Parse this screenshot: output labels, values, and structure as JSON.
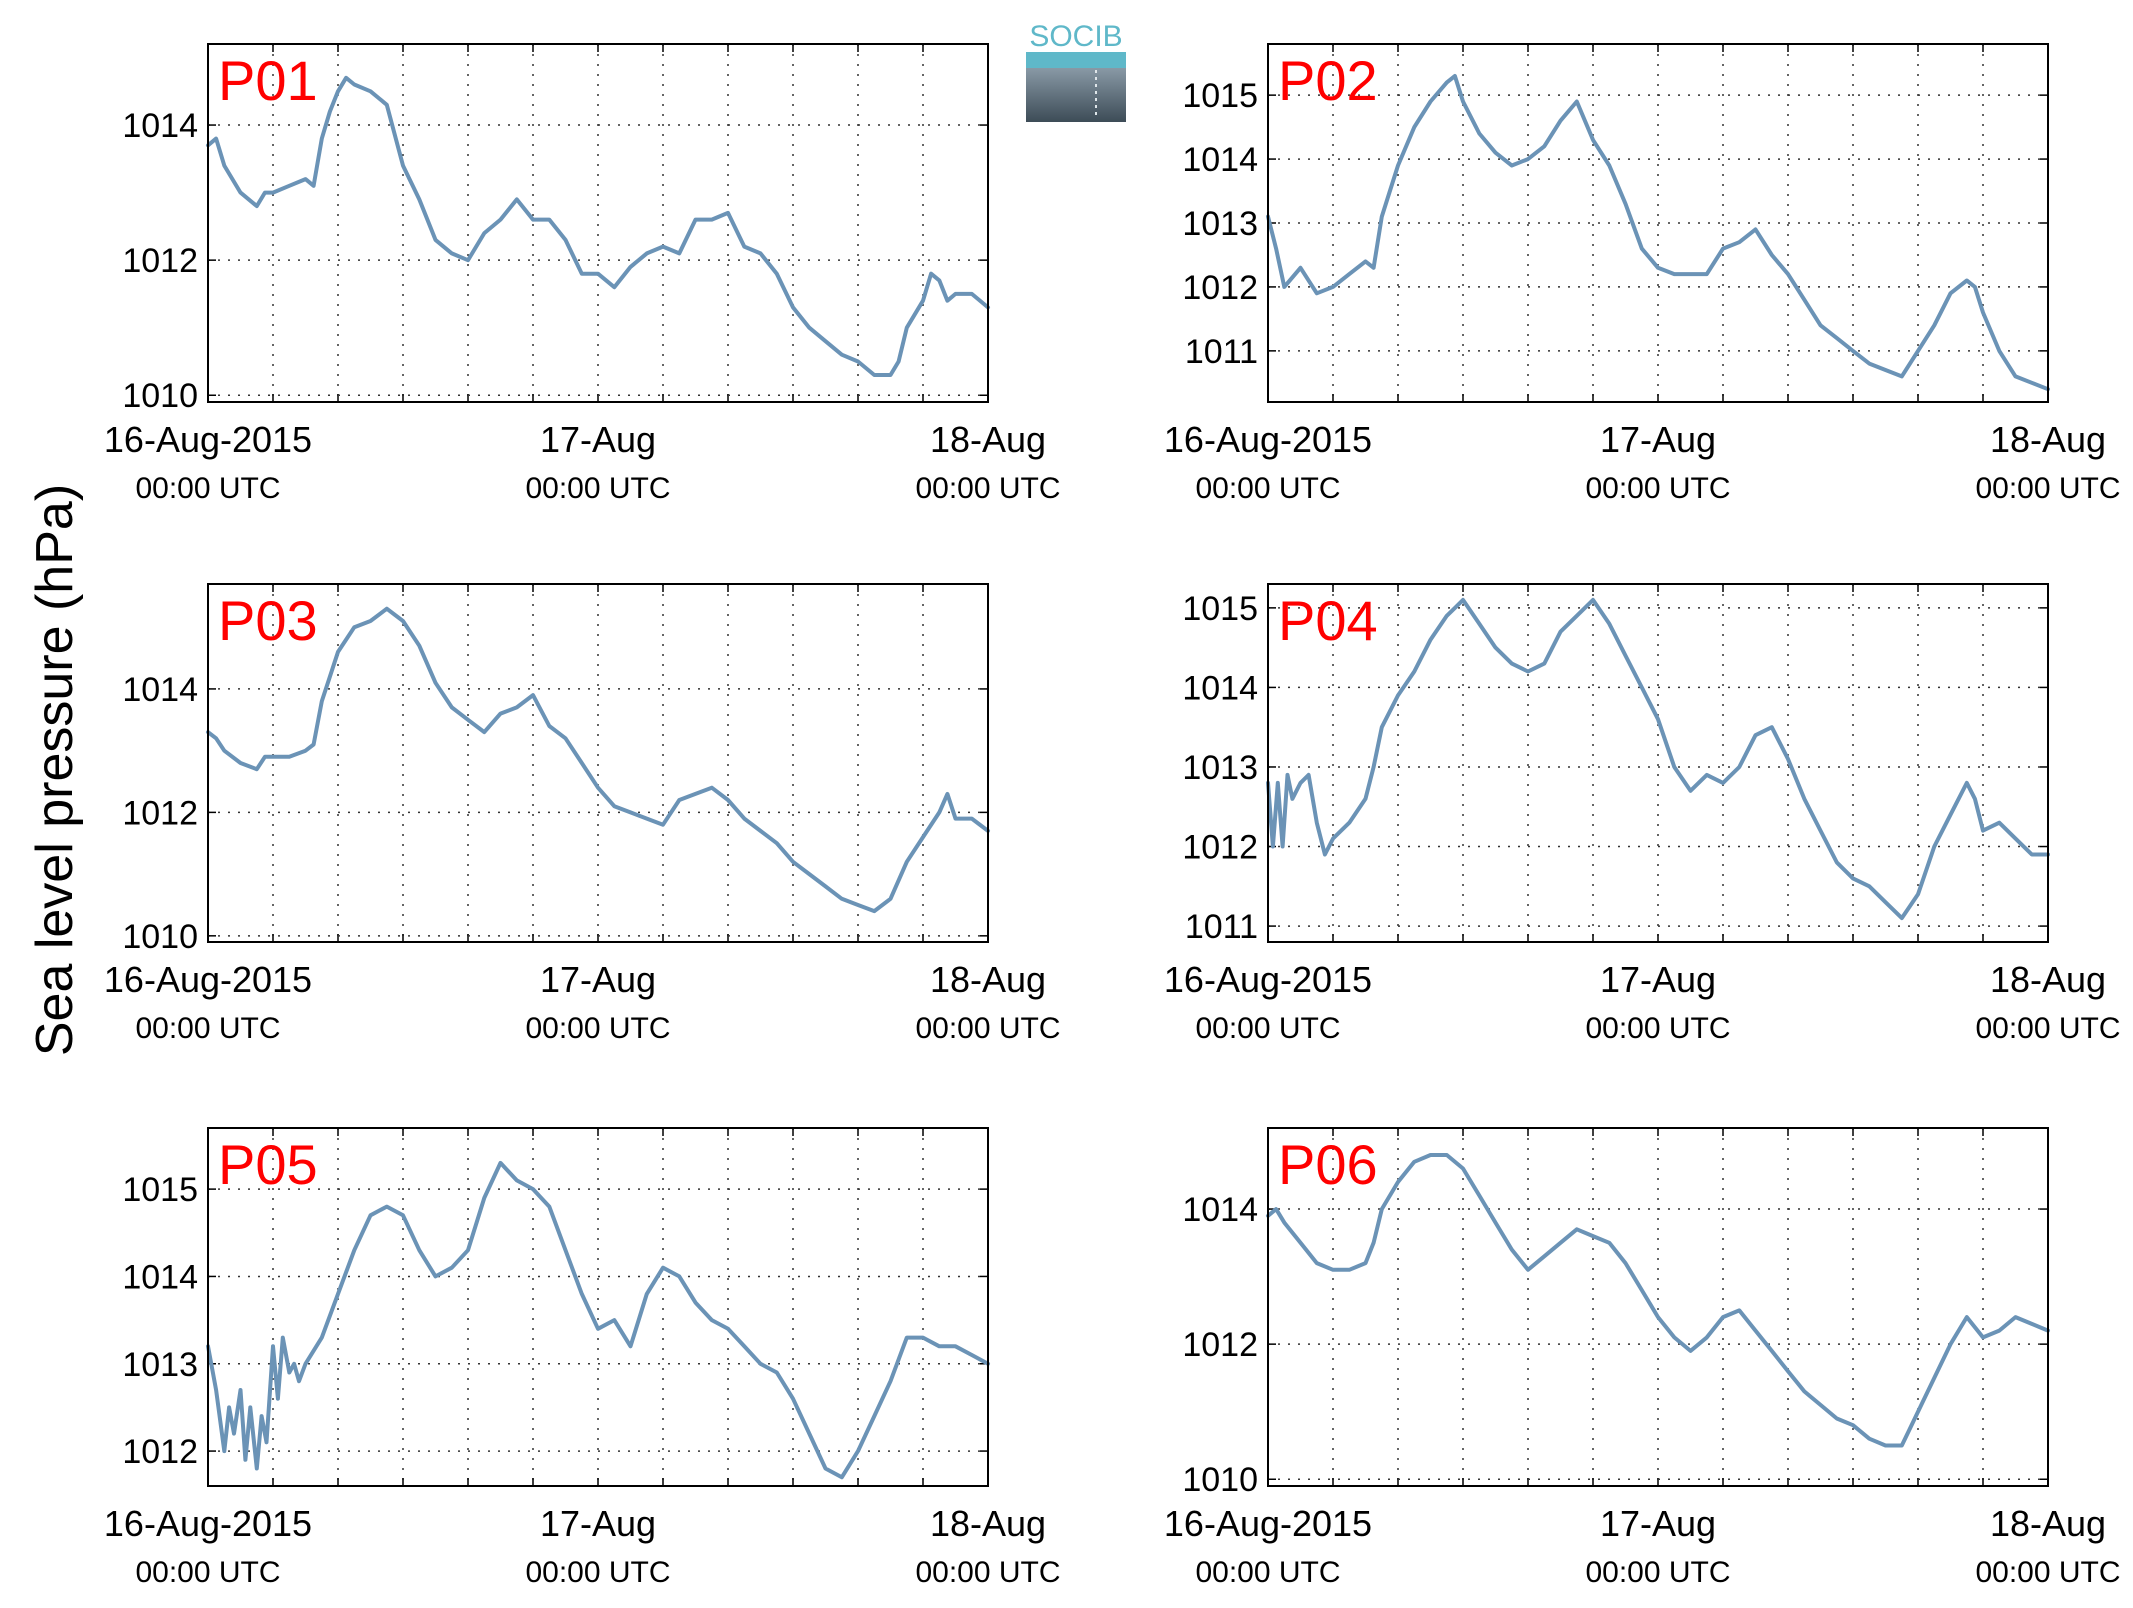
{
  "figure": {
    "ylabel": "Sea level pressure (hPa)",
    "logo_text": "SOCIB",
    "line_color": "#6b93b6",
    "panel_label_color": "#ff0000"
  },
  "chart_data": [
    {
      "type": "line",
      "label": "P01",
      "ylim": [
        1009.9,
        1015.2
      ],
      "yticks": [
        1010,
        1012,
        1014
      ],
      "x_unit": "hours since 16-Aug-2015 00:00 UTC",
      "xlim": [
        0,
        48
      ],
      "xticks": [
        {
          "value": 0,
          "date": "16-Aug-2015",
          "time": "00:00 UTC"
        },
        {
          "value": 24,
          "date": "17-Aug",
          "time": "00:00 UTC"
        },
        {
          "value": 48,
          "date": "18-Aug",
          "time": "00:00 UTC"
        }
      ],
      "x": [
        0,
        0.5,
        1,
        2,
        3,
        3.5,
        4,
        5,
        6,
        6.5,
        7,
        7.5,
        8,
        8.5,
        9,
        10,
        11,
        12,
        13,
        14,
        15,
        16,
        17,
        18,
        19,
        20,
        21,
        22,
        23,
        24,
        25,
        26,
        27,
        28,
        29,
        30,
        31,
        32,
        33,
        34,
        35,
        36,
        37,
        38,
        39,
        40,
        41,
        42,
        42.5,
        43,
        44,
        44.5,
        45,
        45.5,
        46,
        47,
        48
      ],
      "y": [
        1013.7,
        1013.8,
        1013.4,
        1013.0,
        1012.8,
        1013.0,
        1013.0,
        1013.1,
        1013.2,
        1013.1,
        1013.8,
        1014.2,
        1014.5,
        1014.7,
        1014.6,
        1014.5,
        1014.3,
        1013.4,
        1012.9,
        1012.3,
        1012.1,
        1012.0,
        1012.4,
        1012.6,
        1012.9,
        1012.6,
        1012.6,
        1012.3,
        1011.8,
        1011.8,
        1011.6,
        1011.9,
        1012.1,
        1012.2,
        1012.1,
        1012.6,
        1012.6,
        1012.7,
        1012.2,
        1012.1,
        1011.8,
        1011.3,
        1011.0,
        1010.8,
        1010.6,
        1010.5,
        1010.3,
        1010.3,
        1010.5,
        1011.0,
        1011.4,
        1011.8,
        1011.7,
        1011.4,
        1011.5,
        1011.5,
        1011.3
      ]
    },
    {
      "type": "line",
      "label": "P02",
      "ylim": [
        1010.2,
        1015.8
      ],
      "yticks": [
        1011,
        1012,
        1013,
        1014,
        1015
      ],
      "x_unit": "hours since 16-Aug-2015 00:00 UTC",
      "xlim": [
        0,
        48
      ],
      "xticks": [
        {
          "value": 0,
          "date": "16-Aug-2015",
          "time": "00:00 UTC"
        },
        {
          "value": 24,
          "date": "17-Aug",
          "time": "00:00 UTC"
        },
        {
          "value": 48,
          "date": "18-Aug",
          "time": "00:00 UTC"
        }
      ],
      "x": [
        0,
        0.5,
        1,
        2,
        3,
        4,
        5,
        6,
        6.5,
        7,
        7.5,
        8,
        9,
        10,
        11,
        11.5,
        12,
        13,
        14,
        15,
        16,
        17,
        18,
        19,
        20,
        21,
        22,
        23,
        24,
        25,
        26,
        27,
        28,
        29,
        30,
        31,
        32,
        33,
        34,
        35,
        36,
        37,
        38,
        39,
        40,
        41,
        42,
        43,
        43.5,
        44,
        45,
        46,
        47,
        48
      ],
      "y": [
        1013.1,
        1012.6,
        1012.0,
        1012.3,
        1011.9,
        1012.0,
        1012.2,
        1012.4,
        1012.3,
        1013.1,
        1013.5,
        1013.9,
        1014.5,
        1014.9,
        1015.2,
        1015.3,
        1014.9,
        1014.4,
        1014.1,
        1013.9,
        1014.0,
        1014.2,
        1014.6,
        1014.9,
        1014.3,
        1013.9,
        1013.3,
        1012.6,
        1012.3,
        1012.2,
        1012.2,
        1012.2,
        1012.6,
        1012.7,
        1012.9,
        1012.5,
        1012.2,
        1011.8,
        1011.4,
        1011.2,
        1011.0,
        1010.8,
        1010.7,
        1010.6,
        1011.0,
        1011.4,
        1011.9,
        1012.1,
        1012.0,
        1011.6,
        1011.0,
        1010.6,
        1010.5,
        1010.4
      ]
    },
    {
      "type": "line",
      "label": "P03",
      "ylim": [
        1009.9,
        1015.7
      ],
      "yticks": [
        1010,
        1012,
        1014
      ],
      "x_unit": "hours since 16-Aug-2015 00:00 UTC",
      "xlim": [
        0,
        48
      ],
      "xticks": [
        {
          "value": 0,
          "date": "16-Aug-2015",
          "time": "00:00 UTC"
        },
        {
          "value": 24,
          "date": "17-Aug",
          "time": "00:00 UTC"
        },
        {
          "value": 48,
          "date": "18-Aug",
          "time": "00:00 UTC"
        }
      ],
      "x": [
        0,
        0.5,
        1,
        2,
        3,
        3.5,
        4,
        5,
        6,
        6.5,
        7,
        7.5,
        8,
        9,
        10,
        11,
        11.5,
        12,
        13,
        14,
        15,
        16,
        17,
        18,
        19,
        20,
        21,
        22,
        23,
        24,
        25,
        26,
        27,
        28,
        29,
        30,
        31,
        32,
        33,
        34,
        35,
        36,
        37,
        38,
        39,
        40,
        41,
        42,
        43,
        44,
        45,
        45.5,
        46,
        47,
        48
      ],
      "y": [
        1013.3,
        1013.2,
        1013.0,
        1012.8,
        1012.7,
        1012.9,
        1012.9,
        1012.9,
        1013.0,
        1013.1,
        1013.8,
        1014.2,
        1014.6,
        1015.0,
        1015.1,
        1015.3,
        1015.2,
        1015.1,
        1014.7,
        1014.1,
        1013.7,
        1013.5,
        1013.3,
        1013.6,
        1013.7,
        1013.9,
        1013.4,
        1013.2,
        1012.8,
        1012.4,
        1012.1,
        1012.0,
        1011.9,
        1011.8,
        1012.2,
        1012.3,
        1012.4,
        1012.2,
        1011.9,
        1011.7,
        1011.5,
        1011.2,
        1011.0,
        1010.8,
        1010.6,
        1010.5,
        1010.4,
        1010.6,
        1011.2,
        1011.6,
        1012.0,
        1012.3,
        1011.9,
        1011.9,
        1011.7
      ]
    },
    {
      "type": "line",
      "label": "P04",
      "ylim": [
        1010.8,
        1015.3
      ],
      "yticks": [
        1011,
        1012,
        1013,
        1014,
        1015
      ],
      "x_unit": "hours since 16-Aug-2015 00:00 UTC",
      "xlim": [
        0,
        48
      ],
      "xticks": [
        {
          "value": 0,
          "date": "16-Aug-2015",
          "time": "00:00 UTC"
        },
        {
          "value": 24,
          "date": "17-Aug",
          "time": "00:00 UTC"
        },
        {
          "value": 48,
          "date": "18-Aug",
          "time": "00:00 UTC"
        }
      ],
      "x": [
        0,
        0.3,
        0.6,
        0.9,
        1.2,
        1.5,
        2,
        2.5,
        3,
        3.5,
        4,
        5,
        6,
        6.5,
        7,
        8,
        9,
        10,
        11,
        11.5,
        12,
        13,
        14,
        15,
        16,
        17,
        18,
        19,
        20,
        21,
        22,
        23,
        24,
        25,
        26,
        27,
        28,
        29,
        30,
        31,
        32,
        33,
        34,
        35,
        36,
        37,
        38,
        39,
        40,
        41,
        42,
        43,
        43.5,
        44,
        45,
        46,
        47,
        48
      ],
      "y": [
        1012.8,
        1012.0,
        1012.8,
        1012.0,
        1012.9,
        1012.6,
        1012.8,
        1012.9,
        1012.3,
        1011.9,
        1012.1,
        1012.3,
        1012.6,
        1013.0,
        1013.5,
        1013.9,
        1014.2,
        1014.6,
        1014.9,
        1015.0,
        1015.1,
        1014.8,
        1014.5,
        1014.3,
        1014.2,
        1014.3,
        1014.7,
        1014.9,
        1015.1,
        1014.8,
        1014.4,
        1014.0,
        1013.6,
        1013.0,
        1012.7,
        1012.9,
        1012.8,
        1013.0,
        1013.4,
        1013.5,
        1013.1,
        1012.6,
        1012.2,
        1011.8,
        1011.6,
        1011.5,
        1011.3,
        1011.1,
        1011.4,
        1012.0,
        1012.4,
        1012.8,
        1012.6,
        1012.2,
        1012.3,
        1012.1,
        1011.9,
        1011.9
      ]
    },
    {
      "type": "line",
      "label": "P05",
      "ylim": [
        1011.6,
        1015.7
      ],
      "yticks": [
        1012,
        1013,
        1014,
        1015
      ],
      "x_unit": "hours since 16-Aug-2015 00:00 UTC",
      "xlim": [
        0,
        48
      ],
      "xticks": [
        {
          "value": 0,
          "date": "16-Aug-2015",
          "time": "00:00 UTC"
        },
        {
          "value": 24,
          "date": "17-Aug",
          "time": "00:00 UTC"
        },
        {
          "value": 48,
          "date": "18-Aug",
          "time": "00:00 UTC"
        }
      ],
      "x": [
        0,
        0.5,
        1,
        1.3,
        1.6,
        2,
        2.3,
        2.6,
        3,
        3.3,
        3.6,
        4,
        4.3,
        4.6,
        5,
        5.3,
        5.6,
        6,
        7,
        8,
        9,
        10,
        11,
        12,
        13,
        14,
        15,
        16,
        17,
        18,
        19,
        20,
        21,
        22,
        23,
        24,
        25,
        26,
        27,
        28,
        29,
        30,
        31,
        32,
        33,
        34,
        35,
        36,
        37,
        38,
        39,
        40,
        41,
        42,
        43,
        44,
        45,
        46,
        47,
        48
      ],
      "y": [
        1013.2,
        1012.7,
        1012.0,
        1012.5,
        1012.2,
        1012.7,
        1011.9,
        1012.5,
        1011.8,
        1012.4,
        1012.1,
        1013.2,
        1012.6,
        1013.3,
        1012.9,
        1013.0,
        1012.8,
        1013.0,
        1013.3,
        1013.8,
        1014.3,
        1014.7,
        1014.8,
        1014.7,
        1014.3,
        1014.0,
        1014.1,
        1014.3,
        1014.9,
        1015.3,
        1015.1,
        1015.0,
        1014.8,
        1014.3,
        1013.8,
        1013.4,
        1013.5,
        1013.2,
        1013.8,
        1014.1,
        1014.0,
        1013.7,
        1013.5,
        1013.4,
        1013.2,
        1013.0,
        1012.9,
        1012.6,
        1012.2,
        1011.8,
        1011.7,
        1012.0,
        1012.4,
        1012.8,
        1013.3,
        1013.3,
        1013.2,
        1013.2,
        1013.1,
        1013.0
      ]
    },
    {
      "type": "line",
      "label": "P06",
      "ylim": [
        1009.9,
        1015.2
      ],
      "yticks": [
        1010,
        1012,
        1014
      ],
      "x_unit": "hours since 16-Aug-2015 00:00 UTC",
      "xlim": [
        0,
        48
      ],
      "xticks": [
        {
          "value": 0,
          "date": "16-Aug-2015",
          "time": "00:00 UTC"
        },
        {
          "value": 24,
          "date": "17-Aug",
          "time": "00:00 UTC"
        },
        {
          "value": 48,
          "date": "18-Aug",
          "time": "00:00 UTC"
        }
      ],
      "x": [
        0,
        0.5,
        1,
        2,
        3,
        4,
        5,
        6,
        6.5,
        7,
        8,
        9,
        10,
        11,
        12,
        13,
        14,
        15,
        16,
        17,
        18,
        19,
        20,
        21,
        22,
        23,
        24,
        25,
        26,
        27,
        28,
        29,
        30,
        31,
        32,
        33,
        34,
        35,
        36,
        37,
        38,
        39,
        40,
        41,
        42,
        43,
        44,
        45,
        46,
        47,
        48
      ],
      "y": [
        1013.9,
        1014.0,
        1013.8,
        1013.5,
        1013.2,
        1013.1,
        1013.1,
        1013.2,
        1013.5,
        1014.0,
        1014.4,
        1014.7,
        1014.8,
        1014.8,
        1014.6,
        1014.2,
        1013.8,
        1013.4,
        1013.1,
        1013.3,
        1013.5,
        1013.7,
        1013.6,
        1013.5,
        1013.2,
        1012.8,
        1012.4,
        1012.1,
        1011.9,
        1012.1,
        1012.4,
        1012.5,
        1012.2,
        1011.9,
        1011.6,
        1011.3,
        1011.1,
        1010.9,
        1010.8,
        1010.6,
        1010.5,
        1010.5,
        1011.0,
        1011.5,
        1012.0,
        1012.4,
        1012.1,
        1012.2,
        1012.4,
        1012.3,
        1012.2
      ]
    }
  ]
}
